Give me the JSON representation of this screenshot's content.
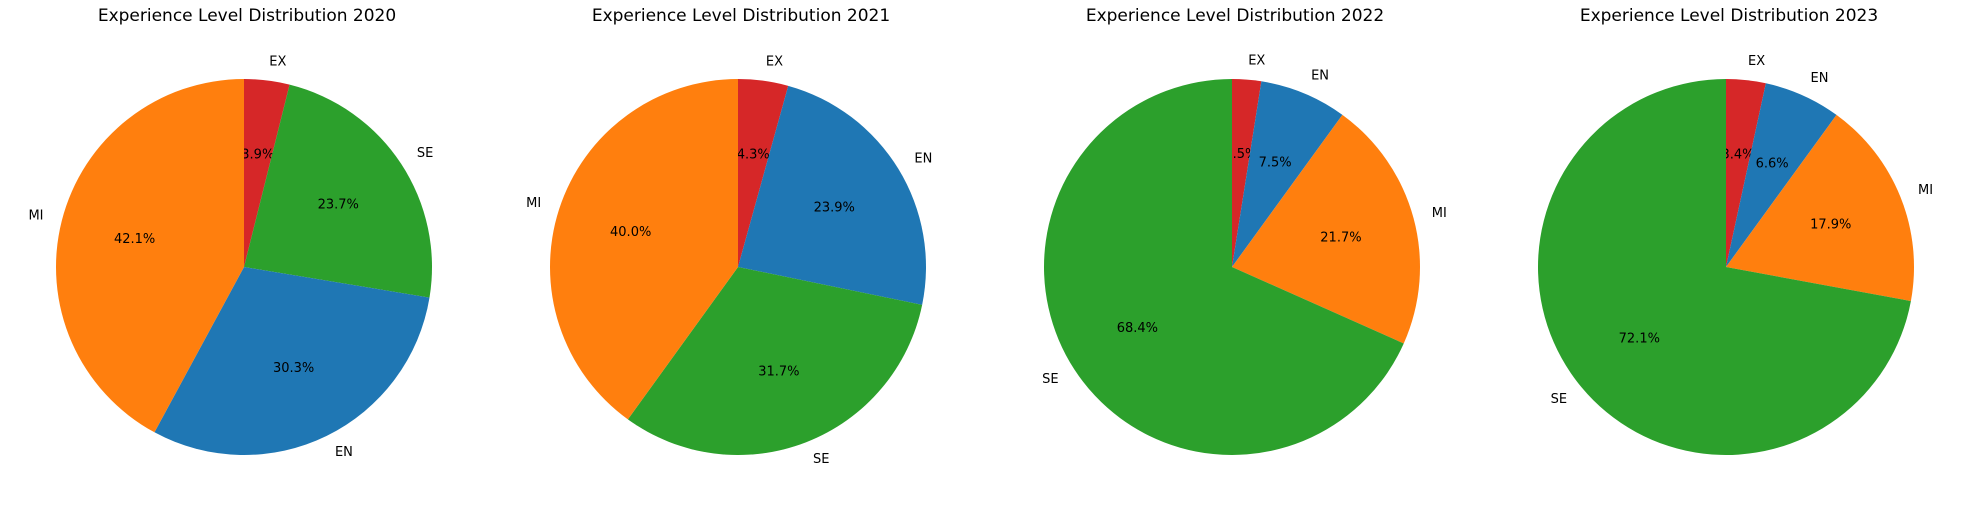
{
  "chart_data": [
    {
      "type": "pie",
      "title": "Experience Level Distribution 2020",
      "slices": [
        {
          "label": "EX",
          "value": 3.9,
          "pct_label": "3.9%",
          "color": "#d62728"
        },
        {
          "label": "SE",
          "value": 23.7,
          "pct_label": "23.7%",
          "color": "#2ca02c"
        },
        {
          "label": "EN",
          "value": 30.3,
          "pct_label": "30.3%",
          "color": "#1f77b4"
        },
        {
          "label": "MI",
          "value": 42.1,
          "pct_label": "42.1%",
          "color": "#ff7f0e"
        }
      ]
    },
    {
      "type": "pie",
      "title": "Experience Level Distribution 2021",
      "slices": [
        {
          "label": "EX",
          "value": 4.3,
          "pct_label": "4.3%",
          "color": "#d62728"
        },
        {
          "label": "EN",
          "value": 23.9,
          "pct_label": "23.9%",
          "color": "#1f77b4"
        },
        {
          "label": "SE",
          "value": 31.7,
          "pct_label": "31.7%",
          "color": "#2ca02c"
        },
        {
          "label": "MI",
          "value": 40.0,
          "pct_label": "40.0%",
          "color": "#ff7f0e"
        }
      ]
    },
    {
      "type": "pie",
      "title": "Experience Level Distribution 2022",
      "slices": [
        {
          "label": "EX",
          "value": 2.5,
          "pct_label": "2.5%",
          "color": "#d62728"
        },
        {
          "label": "EN",
          "value": 7.5,
          "pct_label": "7.5%",
          "color": "#1f77b4"
        },
        {
          "label": "MI",
          "value": 21.7,
          "pct_label": "21.7%",
          "color": "#ff7f0e"
        },
        {
          "label": "SE",
          "value": 68.4,
          "pct_label": "68.4%",
          "color": "#2ca02c"
        }
      ]
    },
    {
      "type": "pie",
      "title": "Experience Level Distribution 2023",
      "slices": [
        {
          "label": "EX",
          "value": 3.4,
          "pct_label": "3.4%",
          "color": "#d62728"
        },
        {
          "label": "EN",
          "value": 6.6,
          "pct_label": "6.6%",
          "color": "#1f77b4"
        },
        {
          "label": "MI",
          "value": 17.9,
          "pct_label": "17.9%",
          "color": "#ff7f0e"
        },
        {
          "label": "SE",
          "value": 72.1,
          "pct_label": "72.1%",
          "color": "#2ca02c"
        }
      ]
    }
  ]
}
